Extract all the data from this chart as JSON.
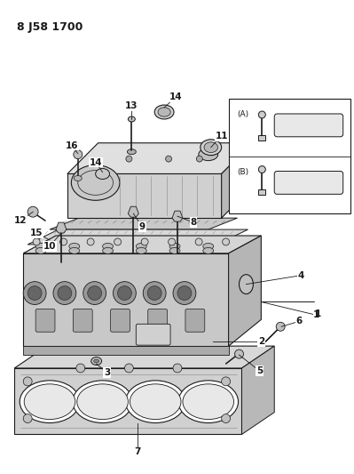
{
  "title": "8 J58 1700",
  "bg_color": "#ffffff",
  "fg_color": "#1a1a1a",
  "fig_width": 3.99,
  "fig_height": 5.33,
  "dpi": 100,
  "line_color": "#1a1a1a",
  "gray_light": "#d8d8d8",
  "gray_mid": "#b0b0b0",
  "gray_dark": "#888888"
}
